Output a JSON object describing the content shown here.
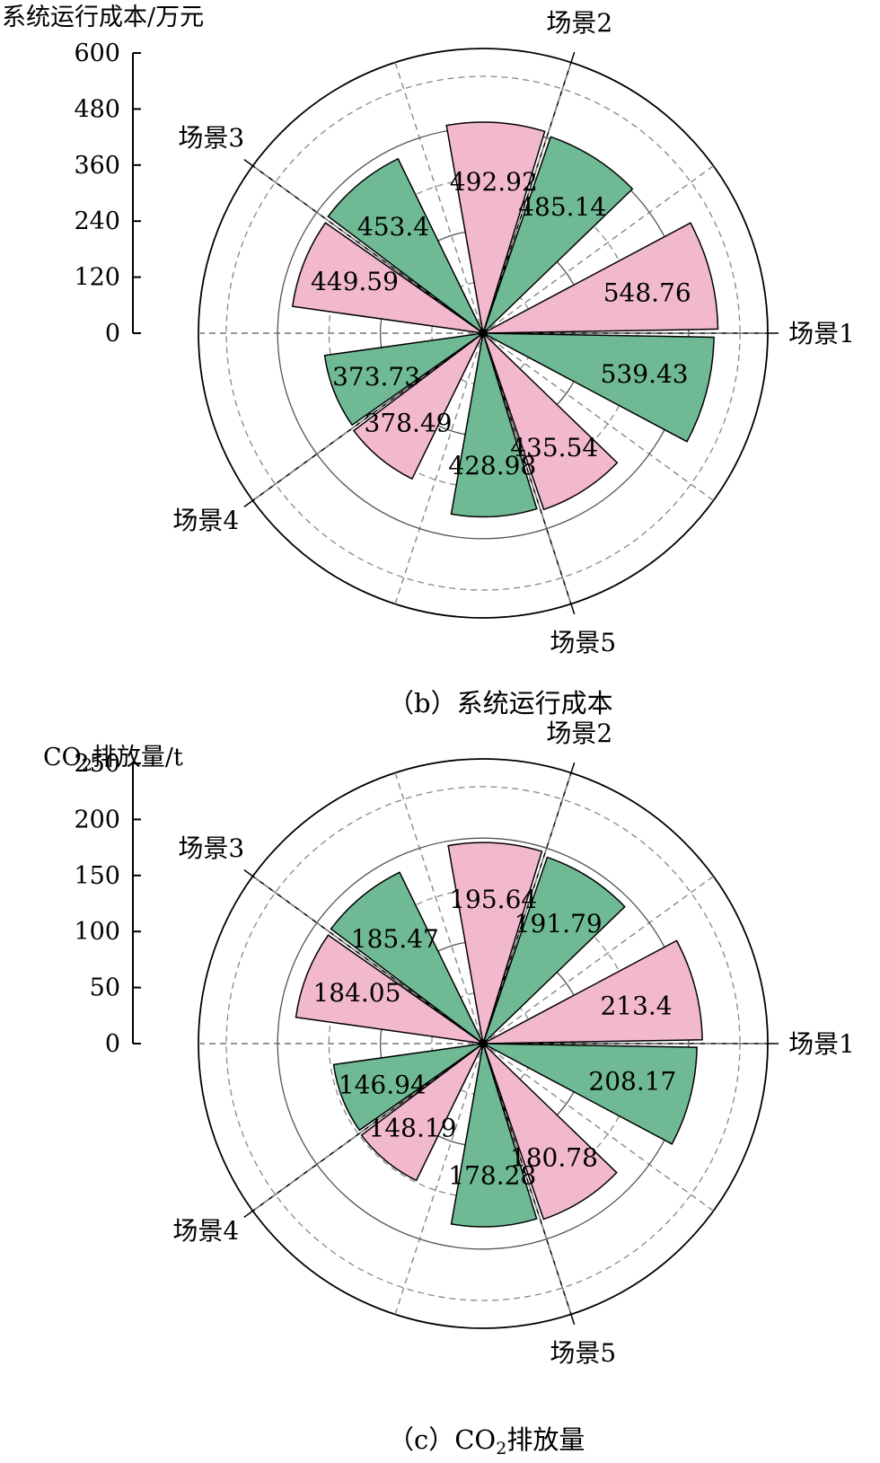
{
  "charts": [
    {
      "id": "b",
      "ylabel": "系统运行成本/万元",
      "ylabel_sub": "",
      "ylabel_rest": "",
      "caption": "（b）系统运行成本",
      "caption_sub": "",
      "caption_rest": "",
      "yticks": [
        "600",
        "480",
        "360",
        "240",
        "120",
        "0"
      ]
    },
    {
      "id": "c",
      "ylabel": "CO",
      "ylabel_sub": "2",
      "ylabel_rest": "排放量/t",
      "caption": "（c）CO",
      "caption_sub": "2",
      "caption_rest": "排放量",
      "yticks": [
        "250",
        "200",
        "150",
        "100",
        "50",
        "0"
      ]
    }
  ],
  "colors": {
    "pink": "#F2B8CE",
    "green": "#6FBA95",
    "stroke": "#000000",
    "grid": "#888888"
  },
  "chart_data": [
    {
      "type": "polar-bar",
      "title": "（b）系统运行成本",
      "ylabel": "系统运行成本/万元",
      "ylim": [
        0,
        600
      ],
      "yticks": [
        0,
        120,
        240,
        360,
        480,
        600
      ],
      "categories": [
        "场景1",
        "场景2",
        "场景3",
        "场景4",
        "场景5"
      ],
      "series": [
        {
          "color": "pink",
          "values": [
            548.76,
            492.92,
            449.59,
            378.49,
            435.54
          ]
        },
        {
          "color": "green",
          "values": [
            539.43,
            485.14,
            453.4,
            373.73,
            428.98
          ]
        }
      ]
    },
    {
      "type": "polar-bar",
      "title": "（c）CO2排放量",
      "ylabel": "CO2排放量/t",
      "ylim": [
        0,
        250
      ],
      "yticks": [
        0,
        50,
        100,
        150,
        200,
        250
      ],
      "categories": [
        "场景1",
        "场景2",
        "场景3",
        "场景4",
        "场景5"
      ],
      "series": [
        {
          "color": "pink",
          "values": [
            213.4,
            195.64,
            184.05,
            148.19,
            180.78
          ]
        },
        {
          "color": "green",
          "values": [
            208.17,
            191.79,
            185.47,
            146.94,
            178.28
          ]
        }
      ]
    }
  ]
}
